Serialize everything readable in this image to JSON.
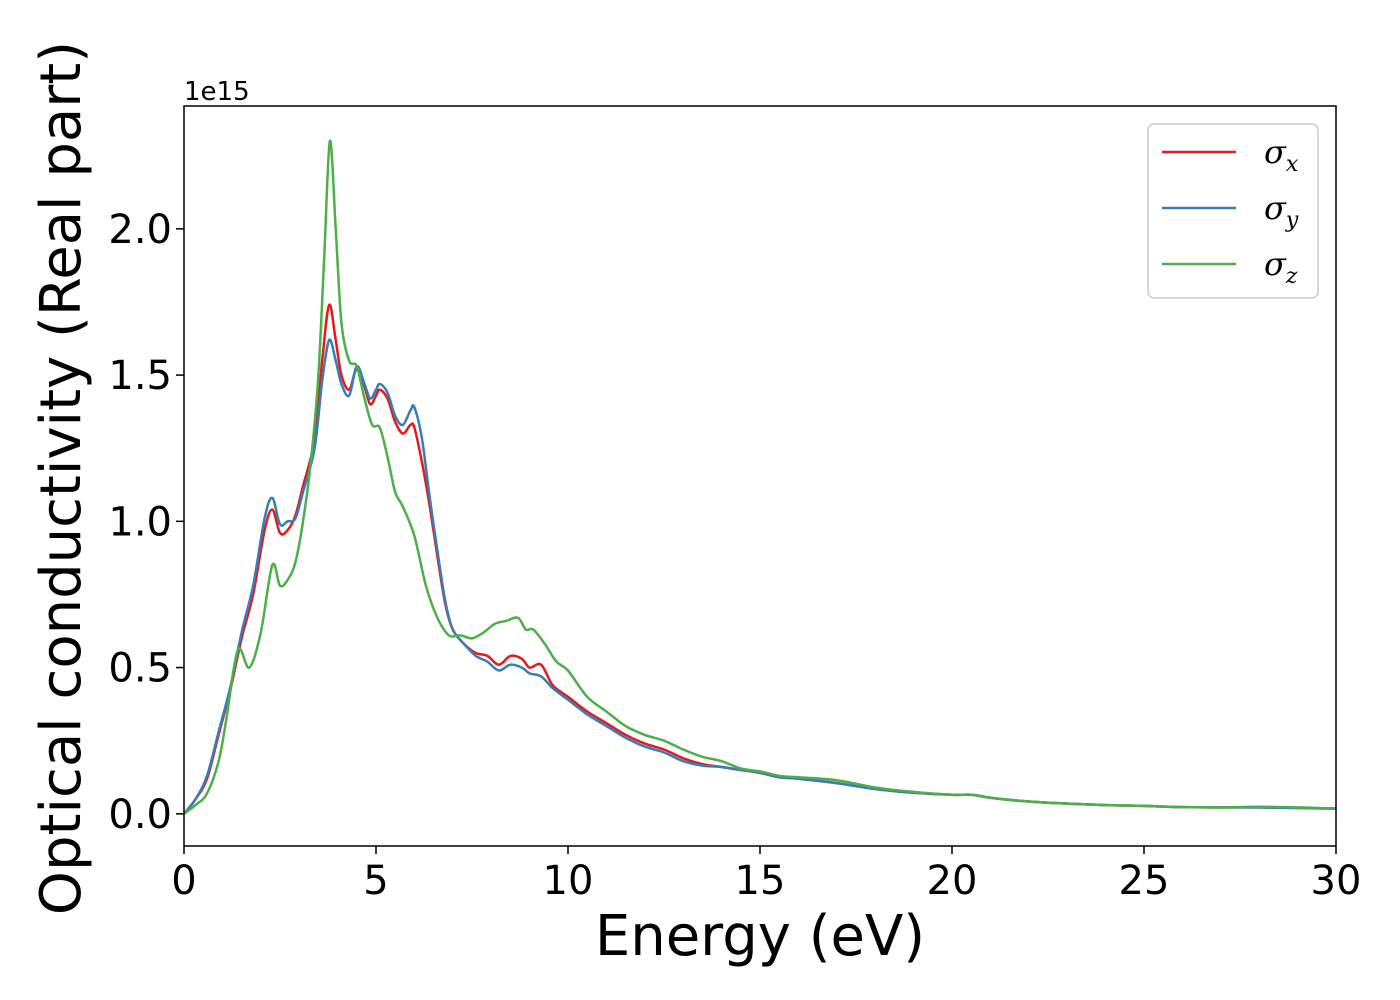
{
  "chart_data": {
    "type": "line",
    "xlabel": "Energy (eV)",
    "ylabel": "Optical conductivity (Real part)",
    "y_offset_label": "1e15",
    "xlim": [
      0,
      30
    ],
    "ylim": [
      -0.11,
      2.42
    ],
    "x_ticks": [
      0,
      5,
      10,
      15,
      20,
      25,
      30
    ],
    "x_tick_labels": [
      "0",
      "5",
      "10",
      "15",
      "20",
      "25",
      "30"
    ],
    "y_ticks": [
      0.0,
      0.5,
      1.0,
      1.5,
      2.0
    ],
    "y_tick_labels": [
      "0.0",
      "0.5",
      "1.0",
      "1.5",
      "2.0"
    ],
    "grid": false,
    "legend_position": "top-right",
    "series": [
      {
        "name": "σ",
        "subscript": "x",
        "color": "#e41a1c",
        "x": [
          0,
          0.3,
          0.6,
          0.9,
          1.2,
          1.5,
          1.8,
          2.1,
          2.3,
          2.5,
          2.7,
          2.9,
          3.1,
          3.4,
          3.6,
          3.78,
          3.95,
          4.1,
          4.3,
          4.5,
          4.7,
          4.85,
          5.0,
          5.1,
          5.3,
          5.5,
          5.7,
          5.9,
          6.0,
          6.2,
          6.4,
          6.6,
          6.8,
          7.0,
          7.3,
          7.6,
          7.9,
          8.2,
          8.5,
          8.8,
          9.0,
          9.3,
          9.6,
          10.0,
          10.5,
          11.0,
          11.5,
          12.0,
          12.5,
          13.0,
          13.5,
          14.0,
          14.5,
          15.0,
          15.5,
          16.0,
          17.0,
          18.0,
          19.0,
          20.0,
          20.5,
          21.0,
          22.0,
          23.0,
          24.0,
          25.0,
          26.0,
          27.0,
          28.0,
          29.0,
          30.0
        ],
        "y": [
          0.0,
          0.05,
          0.12,
          0.27,
          0.42,
          0.6,
          0.75,
          0.97,
          1.04,
          0.96,
          0.97,
          1.02,
          1.12,
          1.28,
          1.55,
          1.74,
          1.62,
          1.5,
          1.45,
          1.52,
          1.46,
          1.4,
          1.43,
          1.45,
          1.42,
          1.34,
          1.3,
          1.33,
          1.32,
          1.2,
          1.05,
          0.88,
          0.72,
          0.63,
          0.58,
          0.55,
          0.54,
          0.51,
          0.54,
          0.53,
          0.5,
          0.51,
          0.44,
          0.4,
          0.35,
          0.31,
          0.27,
          0.24,
          0.22,
          0.19,
          0.17,
          0.16,
          0.15,
          0.14,
          0.125,
          0.12,
          0.105,
          0.085,
          0.072,
          0.065,
          0.065,
          0.055,
          0.042,
          0.035,
          0.03,
          0.027,
          0.023,
          0.022,
          0.022,
          0.02,
          0.018
        ]
      },
      {
        "name": "σ",
        "subscript": "y",
        "color": "#377eb8",
        "x": [
          0,
          0.3,
          0.6,
          0.9,
          1.2,
          1.5,
          1.8,
          2.1,
          2.3,
          2.5,
          2.7,
          2.9,
          3.1,
          3.4,
          3.6,
          3.78,
          3.95,
          4.1,
          4.3,
          4.5,
          4.7,
          4.85,
          5.0,
          5.1,
          5.3,
          5.5,
          5.7,
          5.9,
          6.0,
          6.2,
          6.4,
          6.6,
          6.8,
          7.0,
          7.3,
          7.6,
          7.9,
          8.2,
          8.5,
          8.8,
          9.0,
          9.3,
          9.6,
          10.0,
          10.5,
          11.0,
          11.5,
          12.0,
          12.5,
          13.0,
          13.5,
          14.0,
          14.5,
          15.0,
          15.5,
          16.0,
          17.0,
          18.0,
          19.0,
          20.0,
          20.5,
          21.0,
          22.0,
          23.0,
          24.0,
          25.0,
          26.0,
          27.0,
          28.0,
          29.0,
          30.0
        ],
        "y": [
          0.0,
          0.05,
          0.13,
          0.28,
          0.43,
          0.62,
          0.78,
          1.01,
          1.08,
          0.99,
          1.0,
          1.01,
          1.1,
          1.25,
          1.48,
          1.62,
          1.55,
          1.47,
          1.43,
          1.53,
          1.47,
          1.42,
          1.45,
          1.47,
          1.44,
          1.36,
          1.33,
          1.38,
          1.39,
          1.28,
          1.08,
          0.9,
          0.73,
          0.63,
          0.58,
          0.54,
          0.52,
          0.49,
          0.51,
          0.5,
          0.48,
          0.47,
          0.43,
          0.39,
          0.34,
          0.3,
          0.26,
          0.23,
          0.21,
          0.18,
          0.165,
          0.16,
          0.15,
          0.14,
          0.125,
          0.12,
          0.105,
          0.085,
          0.072,
          0.065,
          0.065,
          0.055,
          0.042,
          0.035,
          0.03,
          0.027,
          0.023,
          0.022,
          0.022,
          0.02,
          0.018
        ]
      },
      {
        "name": "σ",
        "subscript": "z",
        "color": "#4daf4a",
        "x": [
          0,
          0.3,
          0.6,
          0.9,
          1.1,
          1.4,
          1.7,
          2.0,
          2.3,
          2.5,
          2.7,
          2.9,
          3.1,
          3.3,
          3.5,
          3.65,
          3.8,
          3.95,
          4.1,
          4.3,
          4.5,
          4.7,
          4.9,
          5.1,
          5.3,
          5.5,
          5.7,
          6.0,
          6.3,
          6.6,
          6.9,
          7.2,
          7.5,
          7.8,
          8.1,
          8.4,
          8.7,
          8.9,
          9.1,
          9.4,
          9.7,
          10.0,
          10.5,
          11.0,
          11.5,
          12.0,
          12.5,
          13.0,
          13.5,
          14.0,
          14.5,
          15.0,
          15.5,
          16.0,
          17.0,
          18.0,
          19.0,
          20.0,
          20.5,
          21.0,
          22.0,
          23.0,
          24.0,
          25.0,
          26.0,
          27.0,
          28.0,
          29.0,
          30.0
        ],
        "y": [
          0.0,
          0.03,
          0.07,
          0.18,
          0.32,
          0.56,
          0.5,
          0.62,
          0.85,
          0.78,
          0.8,
          0.86,
          1.0,
          1.2,
          1.5,
          1.9,
          2.3,
          2.0,
          1.68,
          1.55,
          1.53,
          1.42,
          1.33,
          1.32,
          1.22,
          1.1,
          1.05,
          0.95,
          0.78,
          0.67,
          0.61,
          0.61,
          0.6,
          0.62,
          0.65,
          0.66,
          0.67,
          0.63,
          0.63,
          0.58,
          0.52,
          0.49,
          0.4,
          0.35,
          0.3,
          0.27,
          0.25,
          0.22,
          0.195,
          0.18,
          0.155,
          0.145,
          0.13,
          0.125,
          0.115,
          0.09,
          0.075,
          0.065,
          0.065,
          0.055,
          0.042,
          0.035,
          0.03,
          0.027,
          0.023,
          0.022,
          0.024,
          0.022,
          0.018
        ]
      }
    ]
  }
}
